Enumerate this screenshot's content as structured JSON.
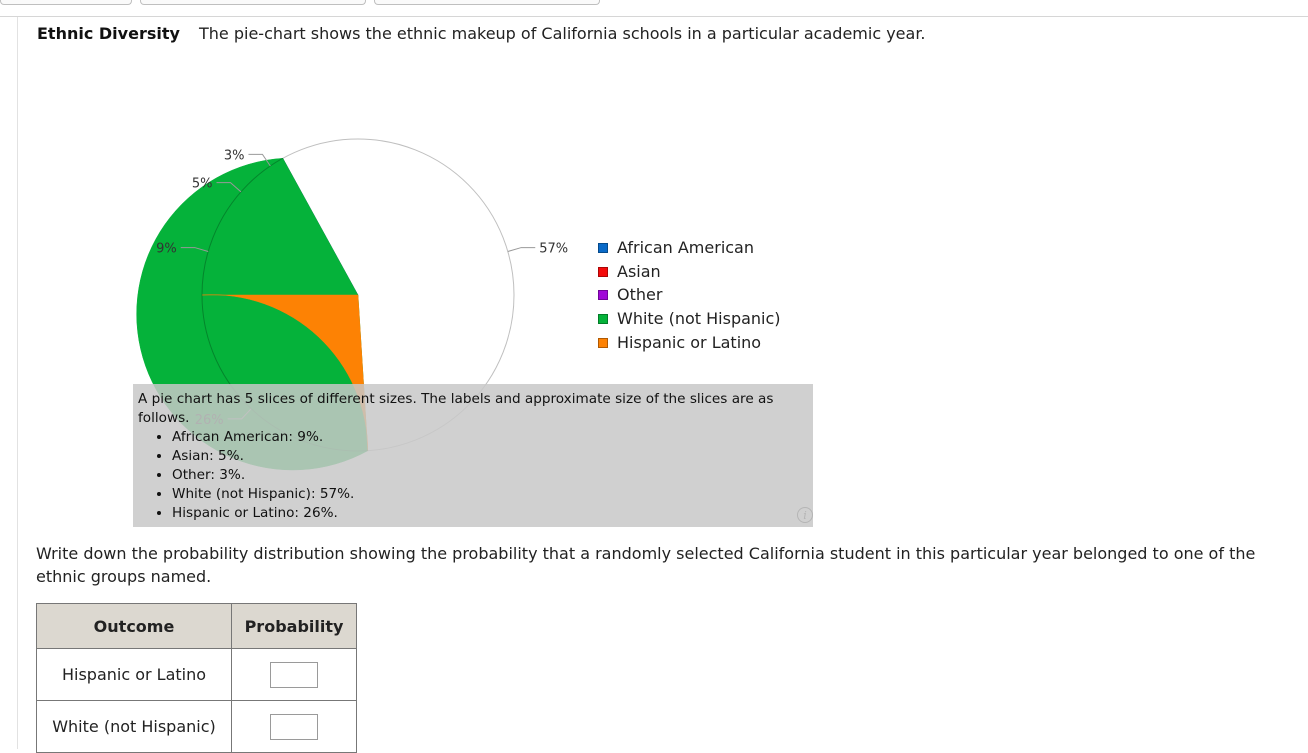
{
  "header": {
    "title": "Ethnic Diversity",
    "description": "The pie-chart shows the ethnic makeup of California schools in a particular academic year."
  },
  "chart_data": {
    "type": "pie",
    "categories": [
      "African American",
      "Asian",
      "Other",
      "White (not Hispanic)",
      "Hispanic or Latino"
    ],
    "values": [
      9,
      5,
      3,
      57,
      26
    ],
    "slice_labels": [
      "9%",
      "5%",
      "3%",
      "57%",
      "26%"
    ],
    "colors": [
      "#0a6ac8",
      "#f40b0b",
      "#a008d8",
      "#05b23a",
      "#fd8204"
    ],
    "legend_position": "right"
  },
  "description_box": {
    "intro": "A pie chart has 5 slices of different sizes. The labels and approximate size of the slices are as follows.",
    "items": [
      "African American: 9%.",
      "Asian: 5%.",
      "Other: 3%.",
      "White (not Hispanic): 57%.",
      "Hispanic or Latino: 26%."
    ],
    "info_icon": "info-icon"
  },
  "question": "Write down the probability distribution showing the probability that a randomly selected California student in this particular year belonged to one of the ethnic groups named.",
  "table": {
    "headers": [
      "Outcome",
      "Probability"
    ],
    "rows": [
      {
        "outcome": "Hispanic or Latino",
        "value": ""
      },
      {
        "outcome": "White (not Hispanic)",
        "value": ""
      }
    ]
  }
}
